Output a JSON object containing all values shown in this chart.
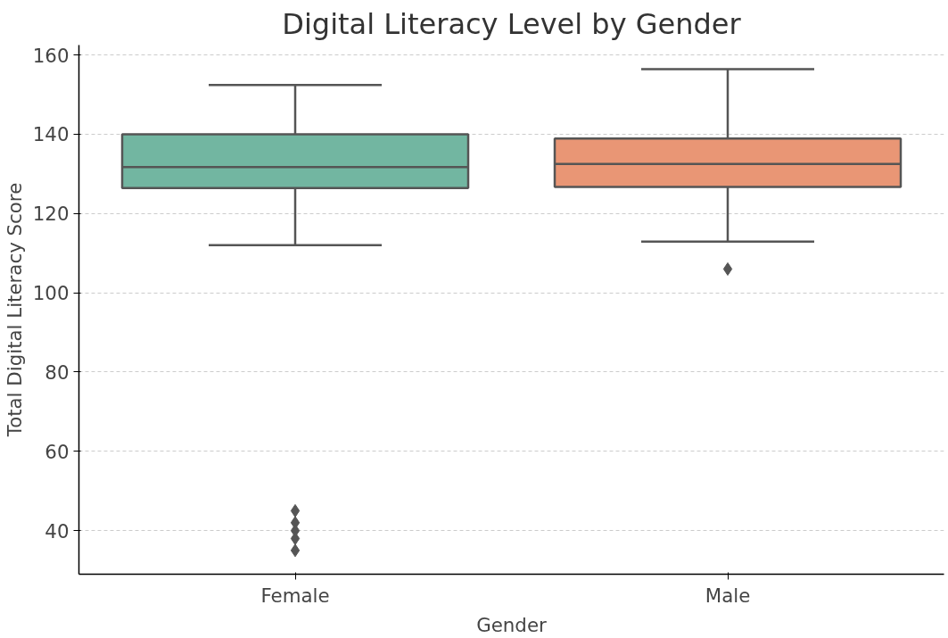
{
  "chart_data": {
    "type": "box",
    "title": "Digital Literacy Level by Gender",
    "xlabel": "Gender",
    "ylabel": "Total Digital Literacy Score",
    "categories": [
      "Female",
      "Male"
    ],
    "series": [
      {
        "colors": [
          "#72b6a1",
          "#e99675"
        ],
        "boxes": [
          {
            "low": 112,
            "q1": 126.4,
            "median": 131.7,
            "q3": 140,
            "high": 152.4,
            "outliers": [
              45,
              42,
              40,
              38,
              35
            ]
          },
          {
            "low": 112.9,
            "q1": 126.7,
            "median": 132.5,
            "q3": 138.9,
            "high": 156.4,
            "outliers": [
              106
            ]
          }
        ]
      }
    ],
    "ylim": [
      29,
      162.5
    ],
    "yticks": [
      40,
      60,
      80,
      100,
      120,
      140,
      160
    ],
    "grid": "y",
    "marker": "diamond"
  }
}
